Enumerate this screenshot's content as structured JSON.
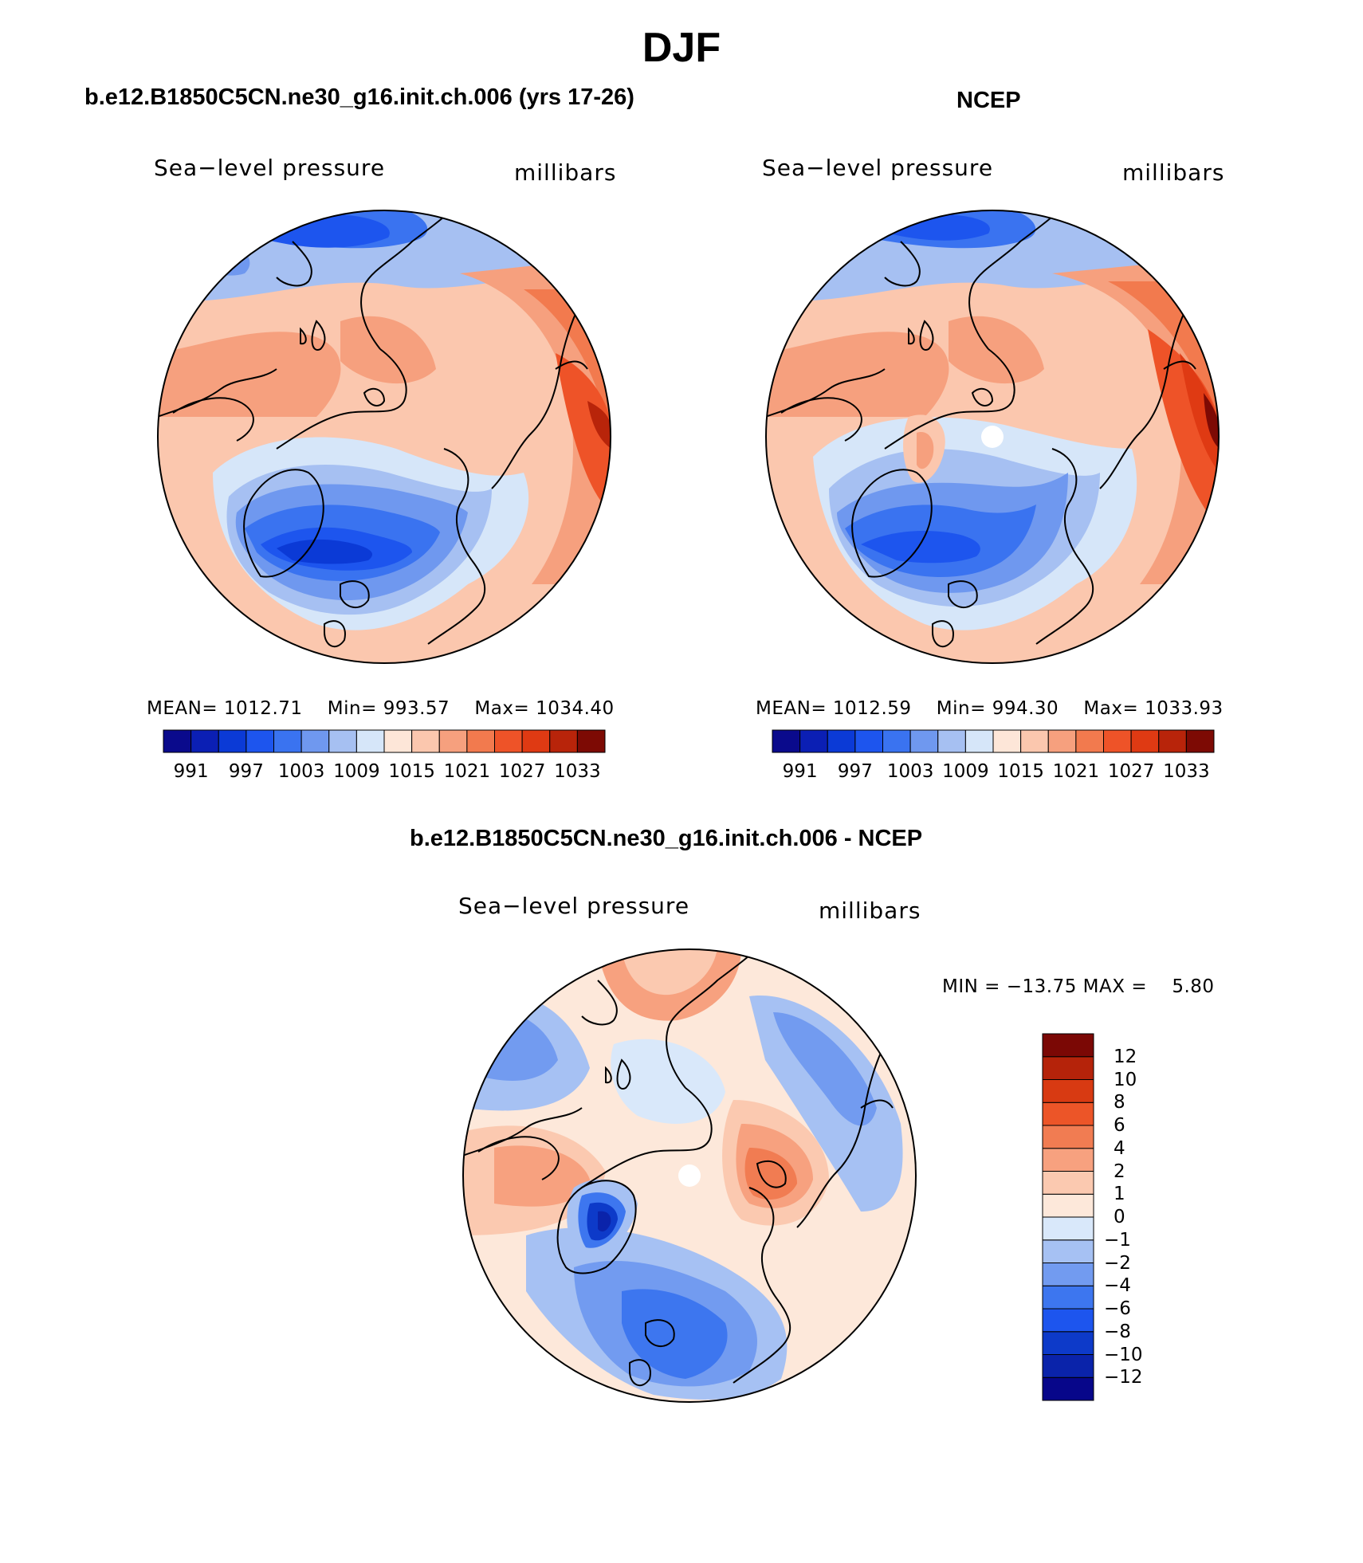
{
  "title": "DJF",
  "panels": {
    "model": {
      "title": "b.e12.B1850C5CN.ne30_g16.init.ch.006 (yrs 17-26)",
      "variable": "Sea−level pressure",
      "units": "millibars",
      "stats": {
        "mean_label": "MEAN=",
        "mean": "1012.71",
        "min_label": "Min=",
        "min": "993.57",
        "max_label": "Max=",
        "max": "1034.40"
      }
    },
    "obs": {
      "title": "NCEP",
      "variable": "Sea−level pressure",
      "units": "millibars",
      "stats": {
        "mean_label": "MEAN=",
        "mean": "1012.59",
        "min_label": "Min=",
        "min": "994.30",
        "max_label": "Max=",
        "max": "1033.93"
      }
    },
    "diff": {
      "title": "b.e12.B1850C5CN.ne30_g16.init.ch.006 - NCEP",
      "variable": "Sea−level pressure",
      "units": "millibars",
      "stats": {
        "min_label": "MIN =",
        "min": "−13.75",
        "max_label": "MAX =",
        "max": "5.80"
      }
    }
  },
  "colorbars": {
    "absolute": {
      "colors": [
        "#0a0a8c",
        "#0b1fb4",
        "#0b3ad6",
        "#1d55ee",
        "#3a73f0",
        "#6f98ef",
        "#a6c0f2",
        "#d6e6f9",
        "#fde6d8",
        "#fbc7ae",
        "#f6a07e",
        "#f27a4e",
        "#ee5328",
        "#df3a13",
        "#b8240a",
        "#7d0a04"
      ],
      "tick_labels": [
        "991",
        "997",
        "1003",
        "1009",
        "1015",
        "1021",
        "1027",
        "1033"
      ]
    },
    "difference": {
      "colors": [
        "#07068a",
        "#0a23aa",
        "#0d3ac9",
        "#1d55ee",
        "#3d76ef",
        "#729bf0",
        "#a6c1f3",
        "#d9e8fa",
        "#fde8da",
        "#fbc9b0",
        "#f7a17f",
        "#f17c52",
        "#ec5528",
        "#d83a12",
        "#b5230a",
        "#7b0805"
      ],
      "tick_labels": [
        "12",
        "10",
        "8",
        "6",
        "4",
        "2",
        "1",
        "0",
        "−1",
        "−2",
        "−4",
        "−6",
        "−8",
        "−10",
        "−12"
      ]
    }
  }
}
